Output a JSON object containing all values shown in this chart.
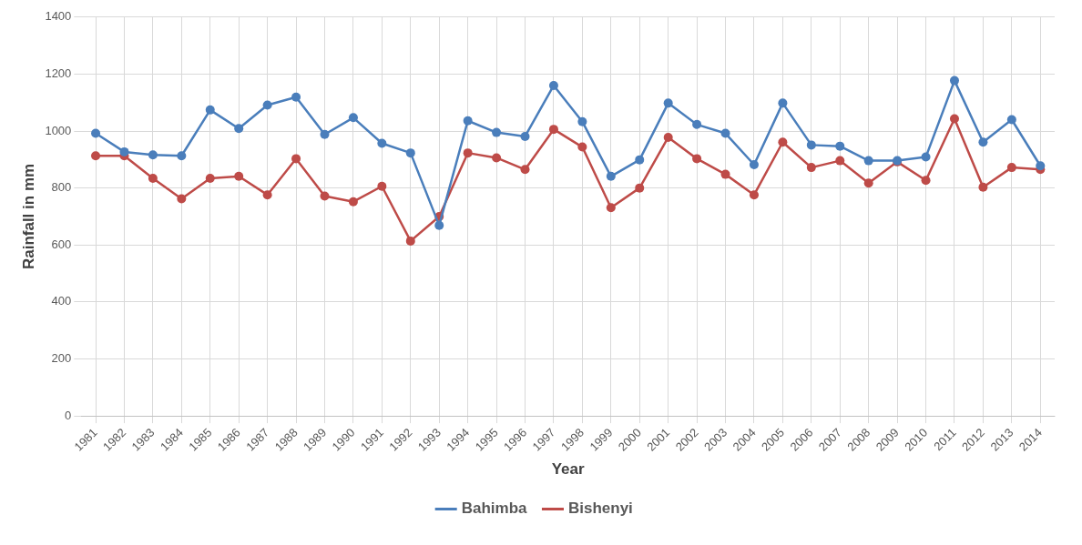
{
  "chart_data": {
    "type": "line",
    "xlabel": "Year",
    "ylabel": "Rainfall in mm",
    "categories": [
      "1981",
      "1982",
      "1983",
      "1984",
      "1985",
      "1986",
      "1987",
      "1988",
      "1989",
      "1990",
      "1991",
      "1992",
      "1993",
      "1994",
      "1995",
      "1996",
      "1997",
      "1998",
      "1999",
      "2000",
      "2001",
      "2002",
      "2003",
      "2004",
      "2005",
      "2006",
      "2007",
      "2008",
      "2009",
      "2010",
      "2011",
      "2012",
      "2013",
      "2014"
    ],
    "series": [
      {
        "name": "Bahimba",
        "color": "#4a7ebb",
        "values": [
          992,
          927,
          916,
          913,
          1074,
          1009,
          1091,
          1119,
          988,
          1047,
          957,
          923,
          669,
          1036,
          995,
          981,
          1160,
          1033,
          841,
          899,
          1098,
          1023,
          992,
          882,
          1098,
          951,
          947,
          896,
          896,
          909,
          1177,
          961,
          1040,
          878
        ]
      },
      {
        "name": "Bishenyi",
        "color": "#be4b48",
        "values": [
          913,
          913,
          834,
          762,
          834,
          841,
          776,
          903,
          772,
          752,
          806,
          614,
          700,
          923,
          906,
          865,
          1006,
          944,
          731,
          800,
          978,
          903,
          848,
          776,
          961,
          872,
          896,
          817,
          892,
          827,
          1043,
          803,
          872,
          865
        ]
      }
    ],
    "ylim": [
      0,
      1400
    ],
    "yticks": [
      0,
      200,
      400,
      600,
      800,
      1000,
      1200,
      1400
    ],
    "grid": true,
    "legend": "bottom",
    "marker": "circle",
    "line_style": "solid"
  }
}
